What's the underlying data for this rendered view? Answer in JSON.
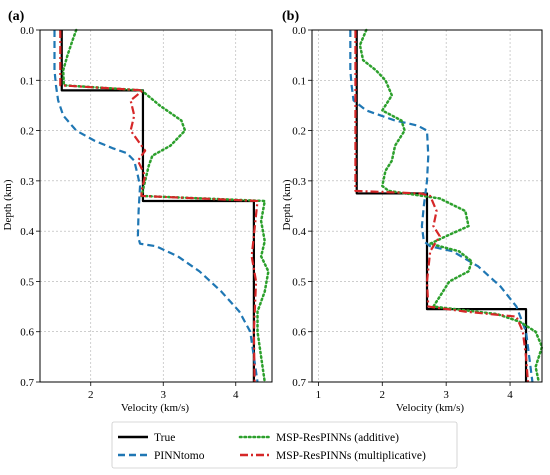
{
  "chart_data": [
    {
      "type": "line",
      "panel_label": "(a)",
      "xlabel": "Velocity (km/s)",
      "ylabel": "Depth (km)",
      "xlim": [
        1.3,
        4.5
      ],
      "ylim": [
        0.0,
        0.7
      ],
      "y_inverted": true,
      "xticks": [
        "2",
        "3",
        "4"
      ],
      "yticks": [
        "0.0",
        "0.1",
        "0.2",
        "0.3",
        "0.4",
        "0.5",
        "0.6",
        "0.7"
      ],
      "grid": true,
      "series": [
        {
          "name": "True",
          "color": "#000000",
          "style": "solid",
          "points": [
            [
              1.6,
              0.0
            ],
            [
              1.6,
              0.12
            ],
            [
              2.72,
              0.12
            ],
            [
              2.72,
              0.34
            ],
            [
              4.25,
              0.34
            ],
            [
              4.25,
              0.7
            ]
          ]
        },
        {
          "name": "PINNtomo",
          "color": "#1f77b4",
          "style": "dashed",
          "points": [
            [
              1.5,
              0.0
            ],
            [
              1.5,
              0.08
            ],
            [
              1.52,
              0.11
            ],
            [
              1.55,
              0.14
            ],
            [
              1.62,
              0.17
            ],
            [
              1.8,
              0.2
            ],
            [
              2.05,
              0.22
            ],
            [
              2.3,
              0.235
            ],
            [
              2.5,
              0.245
            ],
            [
              2.6,
              0.26
            ],
            [
              2.65,
              0.29
            ],
            [
              2.68,
              0.31
            ],
            [
              2.66,
              0.36
            ],
            [
              2.65,
              0.41
            ],
            [
              2.68,
              0.425
            ],
            [
              2.9,
              0.43
            ],
            [
              3.2,
              0.45
            ],
            [
              3.5,
              0.48
            ],
            [
              3.8,
              0.52
            ],
            [
              4.05,
              0.56
            ],
            [
              4.2,
              0.6
            ],
            [
              4.25,
              0.65
            ],
            [
              4.3,
              0.7
            ]
          ]
        },
        {
          "name": "MSP-ResPINNs (additive)",
          "color": "#2ca02c",
          "style": "dotted",
          "points": [
            [
              1.8,
              0.0
            ],
            [
              1.75,
              0.02
            ],
            [
              1.68,
              0.05
            ],
            [
              1.62,
              0.08
            ],
            [
              1.63,
              0.11
            ],
            [
              2.7,
              0.12
            ],
            [
              2.95,
              0.15
            ],
            [
              3.25,
              0.18
            ],
            [
              3.3,
              0.2
            ],
            [
              3.1,
              0.23
            ],
            [
              2.85,
              0.25
            ],
            [
              2.8,
              0.27
            ],
            [
              2.75,
              0.3
            ],
            [
              2.7,
              0.33
            ],
            [
              4.4,
              0.34
            ],
            [
              4.35,
              0.38
            ],
            [
              4.4,
              0.42
            ],
            [
              4.35,
              0.45
            ],
            [
              4.45,
              0.48
            ],
            [
              4.4,
              0.52
            ],
            [
              4.3,
              0.56
            ],
            [
              4.3,
              0.6
            ],
            [
              4.35,
              0.65
            ],
            [
              4.4,
              0.7
            ]
          ]
        },
        {
          "name": "MSP-ResPINNs (multiplicative)",
          "color": "#d62728",
          "style": "dashdot",
          "points": [
            [
              1.58,
              0.0
            ],
            [
              1.58,
              0.11
            ],
            [
              2.72,
              0.12
            ],
            [
              2.55,
              0.14
            ],
            [
              2.6,
              0.17
            ],
            [
              2.55,
              0.2
            ],
            [
              2.65,
              0.22
            ],
            [
              2.75,
              0.24
            ],
            [
              2.65,
              0.26
            ],
            [
              2.75,
              0.29
            ],
            [
              2.7,
              0.32
            ],
            [
              2.7,
              0.33
            ],
            [
              4.3,
              0.34
            ],
            [
              4.22,
              0.45
            ],
            [
              4.28,
              0.5
            ],
            [
              4.25,
              0.6
            ],
            [
              4.26,
              0.7
            ]
          ]
        }
      ]
    },
    {
      "type": "line",
      "panel_label": "(b)",
      "xlabel": "Velocity (km/s)",
      "ylabel": "Depth (km)",
      "xlim": [
        0.9,
        4.5
      ],
      "ylim": [
        0.0,
        0.7
      ],
      "y_inverted": true,
      "xticks": [
        "1",
        "2",
        "3",
        "4"
      ],
      "yticks": [
        "0.0",
        "0.1",
        "0.2",
        "0.3",
        "0.4",
        "0.5",
        "0.6",
        "0.7"
      ],
      "grid": true,
      "series": [
        {
          "name": "True",
          "color": "#000000",
          "style": "solid",
          "points": [
            [
              1.6,
              0.0
            ],
            [
              1.6,
              0.325
            ],
            [
              2.7,
              0.325
            ],
            [
              2.7,
              0.555
            ],
            [
              4.25,
              0.555
            ],
            [
              4.25,
              0.7
            ]
          ]
        },
        {
          "name": "PINNtomo",
          "color": "#1f77b4",
          "style": "dashed",
          "points": [
            [
              1.5,
              0.0
            ],
            [
              1.5,
              0.08
            ],
            [
              1.52,
              0.11
            ],
            [
              1.55,
              0.14
            ],
            [
              1.75,
              0.16
            ],
            [
              2.2,
              0.18
            ],
            [
              2.55,
              0.19
            ],
            [
              2.7,
              0.2
            ],
            [
              2.72,
              0.25
            ],
            [
              2.7,
              0.3
            ],
            [
              2.65,
              0.35
            ],
            [
              2.62,
              0.39
            ],
            [
              2.65,
              0.42
            ],
            [
              2.75,
              0.43
            ],
            [
              3.1,
              0.44
            ],
            [
              3.5,
              0.47
            ],
            [
              3.85,
              0.51
            ],
            [
              4.1,
              0.55
            ],
            [
              4.25,
              0.6
            ],
            [
              4.3,
              0.65
            ],
            [
              4.35,
              0.7
            ]
          ]
        },
        {
          "name": "MSP-ResPINNs (additive)",
          "color": "#2ca02c",
          "style": "dotted",
          "points": [
            [
              1.75,
              0.0
            ],
            [
              1.65,
              0.03
            ],
            [
              1.7,
              0.06
            ],
            [
              1.9,
              0.08
            ],
            [
              2.05,
              0.1
            ],
            [
              2.15,
              0.13
            ],
            [
              2.0,
              0.16
            ],
            [
              2.3,
              0.18
            ],
            [
              2.35,
              0.2
            ],
            [
              2.2,
              0.23
            ],
            [
              2.15,
              0.26
            ],
            [
              2.05,
              0.28
            ],
            [
              2.0,
              0.31
            ],
            [
              2.1,
              0.32
            ],
            [
              2.9,
              0.335
            ],
            [
              3.3,
              0.36
            ],
            [
              3.35,
              0.39
            ],
            [
              3.0,
              0.41
            ],
            [
              2.75,
              0.425
            ],
            [
              3.2,
              0.44
            ],
            [
              3.4,
              0.46
            ],
            [
              3.35,
              0.48
            ],
            [
              3.05,
              0.5
            ],
            [
              2.9,
              0.53
            ],
            [
              2.8,
              0.55
            ],
            [
              3.8,
              0.565
            ],
            [
              4.15,
              0.58
            ],
            [
              4.4,
              0.6
            ],
            [
              4.5,
              0.63
            ],
            [
              4.4,
              0.67
            ],
            [
              4.45,
              0.7
            ]
          ]
        },
        {
          "name": "MSP-ResPINNs (multiplicative)",
          "color": "#d62728",
          "style": "dashdot",
          "points": [
            [
              1.58,
              0.0
            ],
            [
              1.58,
              0.32
            ],
            [
              2.6,
              0.325
            ],
            [
              2.75,
              0.33
            ],
            [
              2.85,
              0.36
            ],
            [
              2.8,
              0.39
            ],
            [
              2.9,
              0.41
            ],
            [
              2.75,
              0.44
            ],
            [
              2.7,
              0.5
            ],
            [
              2.72,
              0.55
            ],
            [
              3.3,
              0.56
            ],
            [
              4.1,
              0.57
            ],
            [
              4.2,
              0.6
            ],
            [
              4.25,
              0.65
            ],
            [
              4.28,
              0.7
            ]
          ]
        }
      ]
    }
  ],
  "legend": {
    "entries": [
      "True",
      "PINNtomo",
      "MSP-ResPINNs (additive)",
      "MSP-ResPINNs (multiplicative)"
    ]
  }
}
